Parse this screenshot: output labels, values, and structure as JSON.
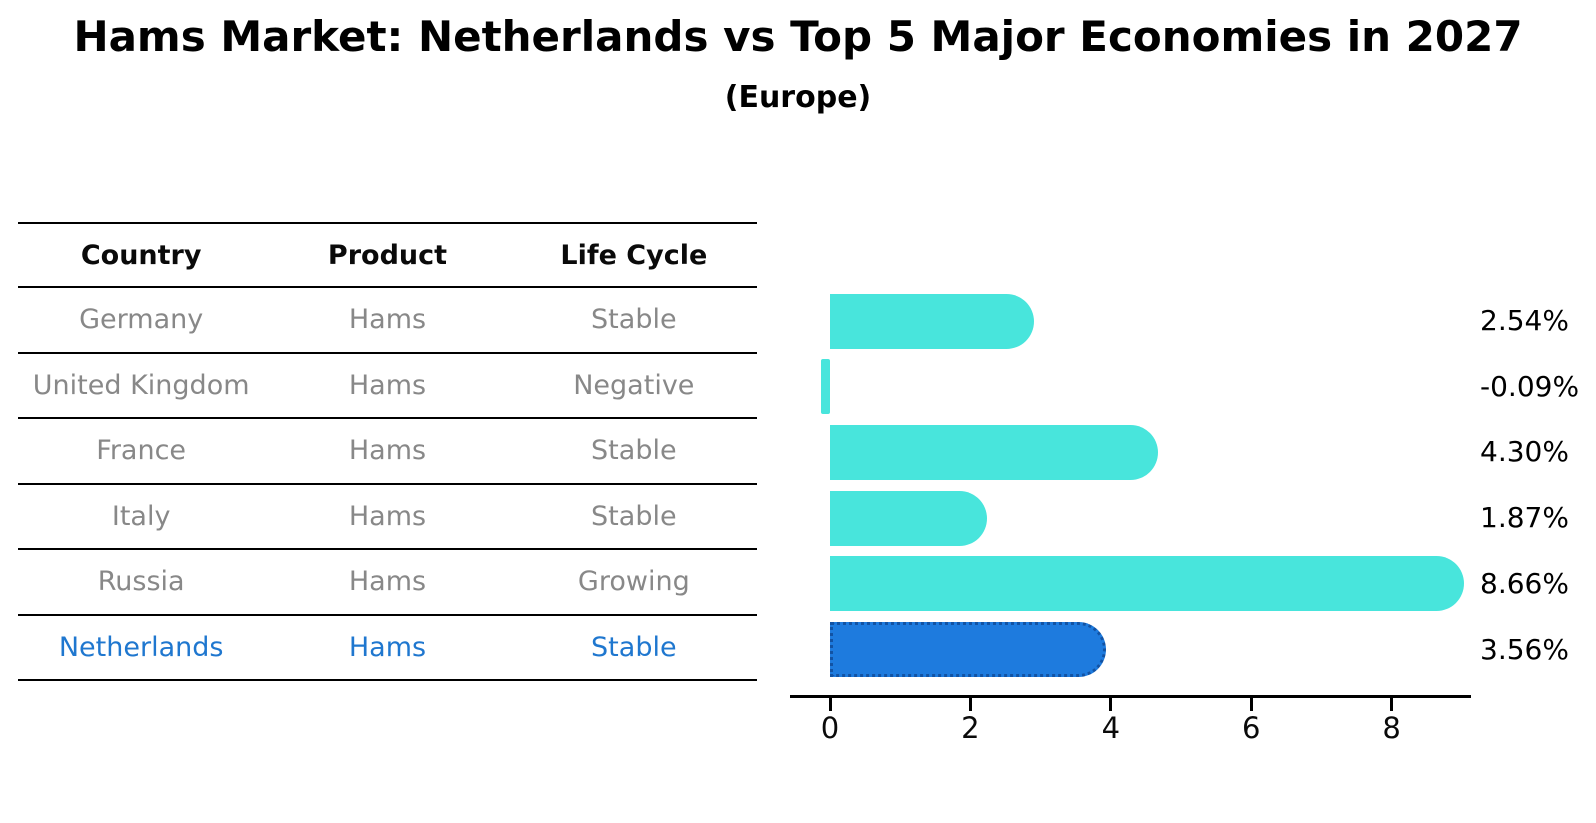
{
  "title": "Hams Market: Netherlands vs Top 5 Major Economies in 2027",
  "subtitle": "(Europe)",
  "table": {
    "headers": [
      "Country",
      "Product",
      "Life Cycle"
    ],
    "rows": [
      {
        "cells": [
          "Germany",
          "Hams",
          "Stable"
        ],
        "highlight": false
      },
      {
        "cells": [
          "United Kingdom",
          "Hams",
          "Negative"
        ],
        "highlight": false
      },
      {
        "cells": [
          "France",
          "Hams",
          "Stable"
        ],
        "highlight": false
      },
      {
        "cells": [
          "Italy",
          "Hams",
          "Stable"
        ],
        "highlight": false
      },
      {
        "cells": [
          "Russia",
          "Hams",
          "Growing"
        ],
        "highlight": false
      },
      {
        "cells": [
          "Netherlands",
          "Hams",
          "Stable"
        ],
        "highlight": true
      }
    ]
  },
  "chart_data": {
    "type": "bar",
    "orientation": "horizontal",
    "title": "Hams Market: Netherlands vs Top 5 Major Economies in 2027",
    "subtitle": "(Europe)",
    "categories": [
      "Germany",
      "United Kingdom",
      "France",
      "Italy",
      "Russia",
      "Netherlands"
    ],
    "values": [
      2.54,
      -0.09,
      4.3,
      1.87,
      8.66,
      3.56
    ],
    "value_labels": [
      "2.54%",
      "-0.09%",
      "4.30%",
      "1.87%",
      "8.66%",
      "3.56%"
    ],
    "unit": "%",
    "x_ticks": [
      0,
      2,
      4,
      6,
      8
    ],
    "xlim": [
      -0.2,
      9.15
    ],
    "grid": false,
    "legend": false,
    "highlight_index": 5,
    "highlight_category": "Netherlands",
    "bar_color": "#48E5DC",
    "highlight_bar_color": "#1E7BDE",
    "highlight_border_color": "#1253A4",
    "axis_color": "#000000",
    "row_text_color": "#888888",
    "highlight_text_color": "#1F77CF"
  }
}
